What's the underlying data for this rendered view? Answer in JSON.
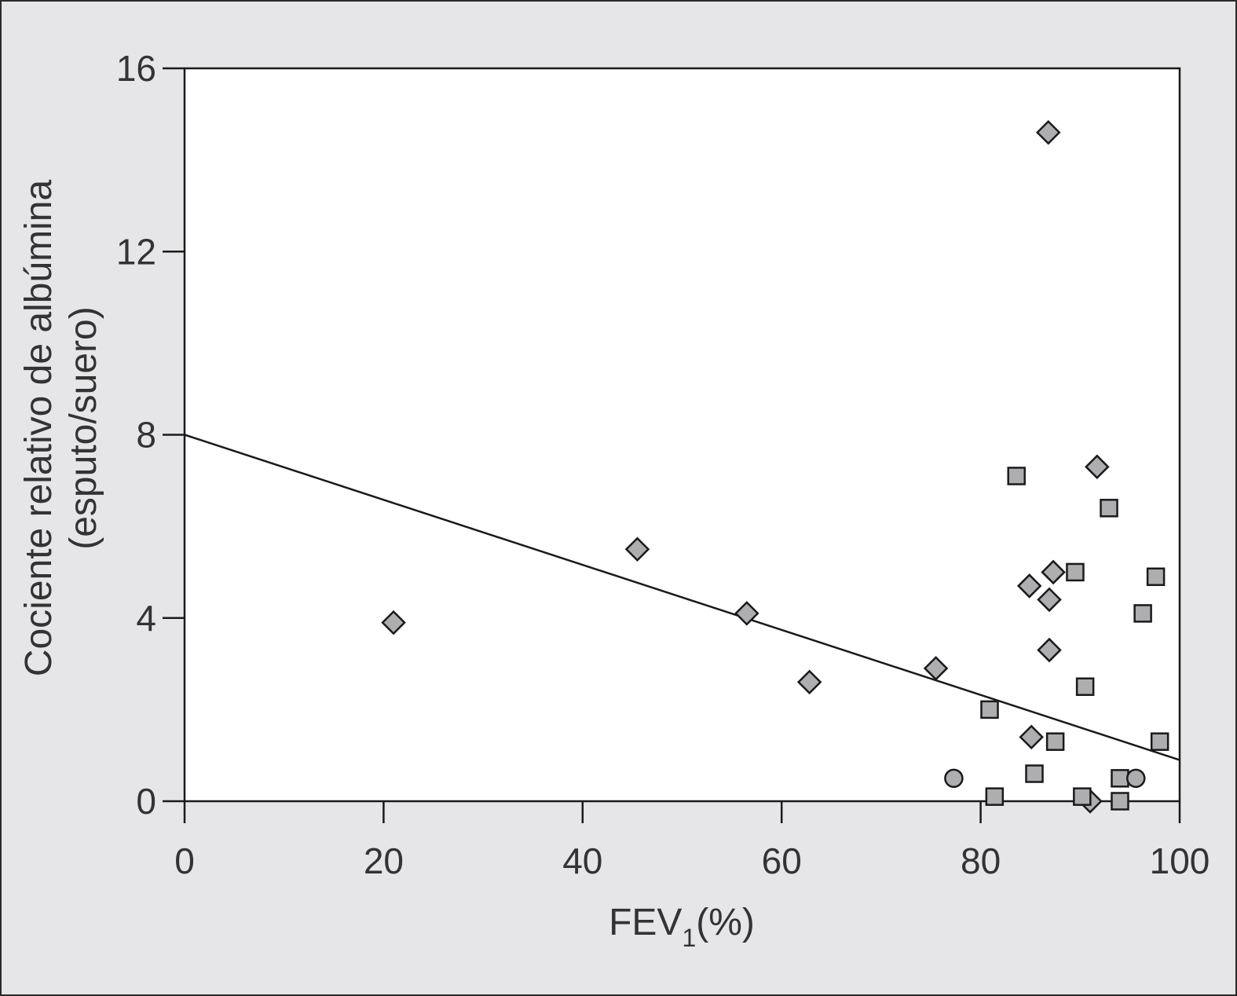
{
  "chart_data": {
    "type": "scatter",
    "xlabel": "FEV",
    "xlabel_subscript": "1",
    "xlabel_suffix": "(%)",
    "ylabel_line1": "Cociente relativo de albúmina",
    "ylabel_line2": "(esputo/suero)",
    "xlim": [
      0,
      100
    ],
    "ylim": [
      0,
      16
    ],
    "xticks": [
      0,
      20,
      40,
      60,
      80,
      100
    ],
    "yticks": [
      0,
      4,
      8,
      12,
      16
    ],
    "grid": false,
    "series": [
      {
        "marker": "diamond",
        "points": [
          [
            21.0,
            3.9
          ],
          [
            45.5,
            5.5
          ],
          [
            56.5,
            4.1
          ],
          [
            62.8,
            2.6
          ],
          [
            75.5,
            2.9
          ],
          [
            86.8,
            14.6
          ],
          [
            91.7,
            7.3
          ],
          [
            87.3,
            5.0
          ],
          [
            84.9,
            4.7
          ],
          [
            86.9,
            4.4
          ],
          [
            86.9,
            3.3
          ],
          [
            85.1,
            1.4
          ],
          [
            91.0,
            0.0
          ]
        ]
      },
      {
        "marker": "square",
        "points": [
          [
            83.6,
            7.1
          ],
          [
            92.9,
            6.4
          ],
          [
            89.5,
            5.0
          ],
          [
            97.6,
            4.9
          ],
          [
            96.3,
            4.1
          ],
          [
            90.5,
            2.5
          ],
          [
            80.9,
            2.0
          ],
          [
            87.5,
            1.3
          ],
          [
            98.0,
            1.3
          ],
          [
            85.4,
            0.6
          ],
          [
            81.4,
            0.1
          ],
          [
            94.0,
            0.5
          ],
          [
            90.2,
            0.1
          ],
          [
            94.0,
            0.0
          ]
        ]
      },
      {
        "marker": "circle",
        "points": [
          [
            77.3,
            0.5
          ],
          [
            95.6,
            0.5
          ]
        ]
      }
    ],
    "fit_line": {
      "x": [
        0,
        100
      ],
      "y": [
        8.0,
        0.9
      ]
    },
    "colors": {
      "marker_fill": "#aeaeb0",
      "stroke": "#1a1a1a",
      "plot_bg": "#ffffff",
      "frame_bg": "#e6e6e8"
    }
  }
}
